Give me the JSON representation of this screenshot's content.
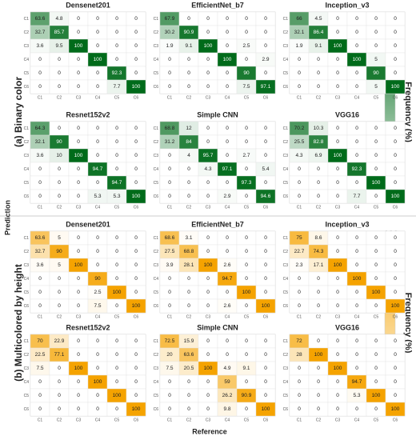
{
  "figure": {
    "x_label": "Reference",
    "y_label": "Prediction",
    "sections": [
      {
        "label": "(a) Binary color",
        "colorbar": {
          "title": "Frequency (%)",
          "lim": [
            0,
            100
          ],
          "ticks": [
            0,
            100
          ],
          "colors": [
            "#ffffff",
            "#006b1a"
          ]
        }
      },
      {
        "label": "(b) Multicolored by height",
        "colorbar": {
          "title": "Frequency (%)",
          "lim": [
            0,
            100
          ],
          "ticks": [
            0,
            100
          ],
          "colors": [
            "#ffffff",
            "#f5a300"
          ]
        }
      }
    ]
  },
  "chart_data": [
    {
      "type": "heatmap",
      "title": "Densenet201",
      "x_categories": [
        "C1",
        "C2",
        "C3",
        "C4",
        "C5",
        "C6"
      ],
      "y_categories": [
        "C1",
        "C2",
        "C3",
        "C4",
        "C5",
        "C6"
      ],
      "values": [
        [
          63.6,
          4.8,
          0,
          0,
          0,
          0
        ],
        [
          32.7,
          85.7,
          0,
          0,
          0,
          0
        ],
        [
          3.6,
          9.5,
          100,
          0,
          0,
          0
        ],
        [
          0,
          0,
          0,
          100,
          0,
          0
        ],
        [
          0,
          0,
          0,
          0,
          92.3,
          0
        ],
        [
          0,
          0,
          0,
          0,
          7.7,
          100
        ]
      ]
    },
    {
      "type": "heatmap",
      "title": "EfficientNet_b7",
      "x_categories": [
        "C1",
        "C2",
        "C3",
        "C4",
        "C5",
        "C6"
      ],
      "y_categories": [
        "C1",
        "C2",
        "C3",
        "C4",
        "C5",
        "C6"
      ],
      "values": [
        [
          67.9,
          0,
          0,
          0,
          0,
          0
        ],
        [
          30.2,
          90.9,
          0,
          0,
          0,
          0
        ],
        [
          1.9,
          9.1,
          100,
          0,
          2.5,
          0
        ],
        [
          0,
          0,
          0,
          100,
          0,
          2.9
        ],
        [
          0,
          0,
          0,
          0,
          90,
          0
        ],
        [
          0,
          0,
          0,
          0,
          7.5,
          97.1
        ]
      ]
    },
    {
      "type": "heatmap",
      "title": "Inception_v3",
      "x_categories": [
        "C1",
        "C2",
        "C3",
        "C4",
        "C5",
        "C6"
      ],
      "y_categories": [
        "C1",
        "C2",
        "C3",
        "C4",
        "C5",
        "C6"
      ],
      "values": [
        [
          66,
          4.5,
          0,
          0,
          0,
          0
        ],
        [
          32.1,
          86.4,
          0,
          0,
          0,
          0
        ],
        [
          1.9,
          9.1,
          100,
          0,
          0,
          0
        ],
        [
          0,
          0,
          0,
          100,
          5,
          0
        ],
        [
          0,
          0,
          0,
          0,
          90,
          0
        ],
        [
          0,
          0,
          0,
          0,
          5,
          100
        ]
      ]
    },
    {
      "type": "heatmap",
      "title": "Resnet152v2",
      "x_categories": [
        "C1",
        "C2",
        "C3",
        "C4",
        "C5",
        "C6"
      ],
      "y_categories": [
        "C1",
        "C2",
        "C3",
        "C4",
        "C5",
        "C6"
      ],
      "values": [
        [
          64.3,
          0,
          0,
          0,
          0,
          0
        ],
        [
          32.1,
          90,
          0,
          0,
          0,
          0
        ],
        [
          3.6,
          10,
          100,
          0,
          0,
          0
        ],
        [
          0,
          0,
          0,
          94.7,
          0,
          0
        ],
        [
          0,
          0,
          0,
          0,
          94.7,
          0
        ],
        [
          0,
          0,
          0,
          5.3,
          5.3,
          100
        ]
      ]
    },
    {
      "type": "heatmap",
      "title": "Simple CNN",
      "x_categories": [
        "C1",
        "C2",
        "C3",
        "C4",
        "C5",
        "C6"
      ],
      "y_categories": [
        "C1",
        "C2",
        "C3",
        "C4",
        "C5",
        "C6"
      ],
      "values": [
        [
          68.8,
          12,
          0,
          0,
          0,
          0
        ],
        [
          31.2,
          84,
          0,
          0,
          0,
          0
        ],
        [
          0,
          4,
          95.7,
          0,
          2.7,
          0
        ],
        [
          0,
          0,
          4.3,
          97.1,
          0,
          5.4
        ],
        [
          0,
          0,
          0,
          0,
          97.3,
          0
        ],
        [
          0,
          0,
          0,
          2.9,
          0,
          94.6
        ]
      ]
    },
    {
      "type": "heatmap",
      "title": "VGG16",
      "x_categories": [
        "C1",
        "C2",
        "C3",
        "C4",
        "C5",
        "C6"
      ],
      "y_categories": [
        "C1",
        "C2",
        "C3",
        "C4",
        "C5",
        "C6"
      ],
      "values": [
        [
          70.2,
          10.3,
          0,
          0,
          0,
          0
        ],
        [
          25.5,
          82.8,
          0,
          0,
          0,
          0
        ],
        [
          4.3,
          6.9,
          100,
          0,
          0,
          0
        ],
        [
          0,
          0,
          0,
          92.3,
          0,
          0
        ],
        [
          0,
          0,
          0,
          0,
          100,
          0
        ],
        [
          0,
          0,
          0,
          7.7,
          0,
          100
        ]
      ]
    },
    {
      "type": "heatmap",
      "title": "Densenet201",
      "x_categories": [
        "C1",
        "C2",
        "C3",
        "C4",
        "C5",
        "C6"
      ],
      "y_categories": [
        "C1",
        "C2",
        "C3",
        "C4",
        "C5",
        "C6"
      ],
      "values": [
        [
          63.6,
          5,
          0,
          0,
          0,
          0
        ],
        [
          32.7,
          90,
          0,
          0,
          0,
          0
        ],
        [
          3.6,
          5,
          100,
          0,
          0,
          0
        ],
        [
          0,
          0,
          0,
          90,
          0,
          0
        ],
        [
          0,
          0,
          0,
          2.5,
          100,
          0
        ],
        [
          0,
          0,
          0,
          7.5,
          0,
          100
        ]
      ]
    },
    {
      "type": "heatmap",
      "title": "EfficientNet_b7",
      "x_categories": [
        "C1",
        "C2",
        "C3",
        "C4",
        "C5",
        "C6"
      ],
      "y_categories": [
        "C1",
        "C2",
        "C3",
        "C4",
        "C5",
        "C6"
      ],
      "values": [
        [
          68.6,
          3.1,
          0,
          0,
          0,
          0
        ],
        [
          27.5,
          68.8,
          0,
          0,
          0,
          0
        ],
        [
          3.9,
          28.1,
          100,
          2.6,
          0,
          0
        ],
        [
          0,
          0,
          0,
          94.7,
          0,
          0
        ],
        [
          0,
          0,
          0,
          0,
          100,
          0
        ],
        [
          0,
          0,
          0,
          2.6,
          0,
          100
        ]
      ]
    },
    {
      "type": "heatmap",
      "title": "Inception_v3",
      "x_categories": [
        "C1",
        "C2",
        "C3",
        "C4",
        "C5",
        "C6"
      ],
      "y_categories": [
        "C1",
        "C2",
        "C3",
        "C4",
        "C5",
        "C6"
      ],
      "values": [
        [
          75,
          8.6,
          0,
          0,
          0,
          0
        ],
        [
          22.7,
          74.3,
          0,
          0,
          0,
          0
        ],
        [
          2.3,
          17.1,
          100,
          0,
          0,
          0
        ],
        [
          0,
          0,
          0,
          100,
          0,
          0
        ],
        [
          0,
          0,
          0,
          0,
          100,
          0
        ],
        [
          0,
          0,
          0,
          0,
          0,
          100
        ]
      ]
    },
    {
      "type": "heatmap",
      "title": "Resnet152v2",
      "x_categories": [
        "C1",
        "C2",
        "C3",
        "C4",
        "C5",
        "C6"
      ],
      "y_categories": [
        "C1",
        "C2",
        "C3",
        "C4",
        "C5",
        "C6"
      ],
      "values": [
        [
          70,
          22.9,
          0,
          0,
          0,
          0
        ],
        [
          22.5,
          77.1,
          0,
          0,
          0,
          0
        ],
        [
          7.5,
          0,
          100,
          0,
          0,
          0
        ],
        [
          0,
          0,
          0,
          100,
          0,
          0
        ],
        [
          0,
          0,
          0,
          0,
          100,
          0
        ],
        [
          0,
          0,
          0,
          0,
          0,
          100
        ]
      ]
    },
    {
      "type": "heatmap",
      "title": "Simple CNN",
      "x_categories": [
        "C1",
        "C2",
        "C3",
        "C4",
        "C5",
        "C6"
      ],
      "y_categories": [
        "C1",
        "C2",
        "C3",
        "C4",
        "C5",
        "C6"
      ],
      "values": [
        [
          72.5,
          15.9,
          0,
          0,
          0,
          0
        ],
        [
          20,
          63.6,
          0,
          0,
          0,
          0
        ],
        [
          7.5,
          20.5,
          100,
          4.9,
          9.1,
          0
        ],
        [
          0,
          0,
          0,
          59,
          0,
          0
        ],
        [
          0,
          0,
          0,
          26.2,
          90.9,
          0
        ],
        [
          0,
          0,
          0,
          9.8,
          0,
          100
        ]
      ]
    },
    {
      "type": "heatmap",
      "title": "VGG16",
      "x_categories": [
        "C1",
        "C2",
        "C3",
        "C4",
        "C5",
        "C6"
      ],
      "y_categories": [
        "C1",
        "C2",
        "C3",
        "C4",
        "C5",
        "C6"
      ],
      "values": [
        [
          72,
          0,
          0,
          0,
          0,
          0
        ],
        [
          28,
          100,
          0,
          0,
          0,
          0
        ],
        [
          0,
          0,
          100,
          0,
          0,
          0
        ],
        [
          0,
          0,
          0,
          94.7,
          0,
          0
        ],
        [
          0,
          0,
          0,
          5.3,
          100,
          0
        ],
        [
          0,
          0,
          0,
          0,
          0,
          100
        ]
      ]
    }
  ]
}
